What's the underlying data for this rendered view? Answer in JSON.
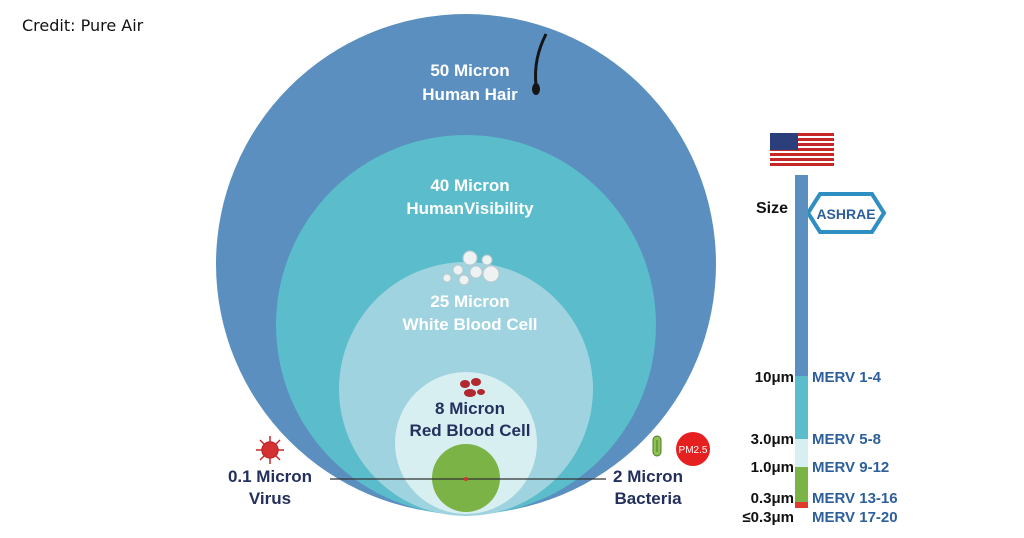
{
  "credit": "Credit: Pure Air",
  "circles": [
    {
      "key": "hair",
      "size": "50 Micron",
      "name": "Human Hair",
      "color": "#5b8fc0",
      "text_color": "#ffffff"
    },
    {
      "key": "vis",
      "size": "40 Micron",
      "name": "HumanVisibility",
      "color": "#5bbccb",
      "text_color": "#ffffff"
    },
    {
      "key": "wbc",
      "size": "25 Micron",
      "name": "White Blood Cell",
      "color": "#9fd3df",
      "text_color": "#ffffff"
    },
    {
      "key": "rbc",
      "size": "8 Micron",
      "name": "Red Blood Cell",
      "color": "#d8eff2",
      "text_color": "#23305e"
    },
    {
      "key": "bact",
      "size": "",
      "name": "",
      "color": "#7bb347",
      "text_color": "#ffffff"
    }
  ],
  "virus": {
    "size": "0.1 Micron",
    "name": "Virus"
  },
  "bacteria": {
    "size": "2 Micron",
    "name": "Bacteria"
  },
  "pm_badge": "PM2.5",
  "scale": {
    "size_label": "Size",
    "ashrae_logo": "ASHRAE",
    "segment_colors": [
      "#5b8fc0",
      "#5bbccb",
      "#d8eff2",
      "#7bb347",
      "#e03a2f"
    ],
    "rows": [
      {
        "size": "10μm",
        "merv": "MERV 1-4"
      },
      {
        "size": "3.0μm",
        "merv": "MERV 5-8"
      },
      {
        "size": "1.0μm",
        "merv": "MERV 9-12"
      },
      {
        "size": "0.3μm",
        "merv": "MERV 13-16"
      },
      {
        "size": "≤0.3μm",
        "merv": "MERV 17-20"
      }
    ]
  },
  "icons": [
    "human-hair-icon",
    "white-blood-cells-icon",
    "red-blood-cells-icon",
    "virus-icon",
    "bacteria-icon",
    "us-flag-icon",
    "ashrae-logo"
  ]
}
